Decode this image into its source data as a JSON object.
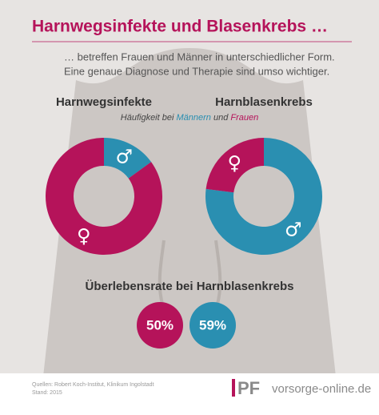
{
  "title": "Harnwegsinfekte und Blasenkrebs …",
  "intro": [
    "… betreffen Frauen und Männer in unterschiedlicher Form.",
    "Eine genaue Diagnose und Therapie sind umso wichtiger."
  ],
  "legend": {
    "prefix": "Häufigkeit bei ",
    "men": "Männern",
    "middle": " und ",
    "women": "Frauen"
  },
  "donuts": [
    {
      "heading": "Harnwegsinfekte",
      "segments": [
        {
          "symbol": "♂",
          "share": 15,
          "color": "#2a8fb1"
        },
        {
          "symbol": "♀",
          "share": 85,
          "color": "#b5135a"
        }
      ]
    },
    {
      "heading": "Harnblasenkrebs",
      "segments": [
        {
          "symbol": "♂",
          "share": 77,
          "color": "#2a8fb1"
        },
        {
          "symbol": "♀",
          "share": 23,
          "color": "#b5135a"
        }
      ]
    }
  ],
  "survival": {
    "heading": "Überlebensrate bei Harnblasenkrebs",
    "items": [
      {
        "label": "50%",
        "color": "#b5135a"
      },
      {
        "label": "59%",
        "color": "#2a8fb1"
      }
    ]
  },
  "footer": {
    "source": [
      "Quellen: Robert Koch-Institut, Klinikum Ingolstadt",
      "Stand: 2015"
    ],
    "logo": "PF",
    "url": "vorsorge-online.de"
  }
}
